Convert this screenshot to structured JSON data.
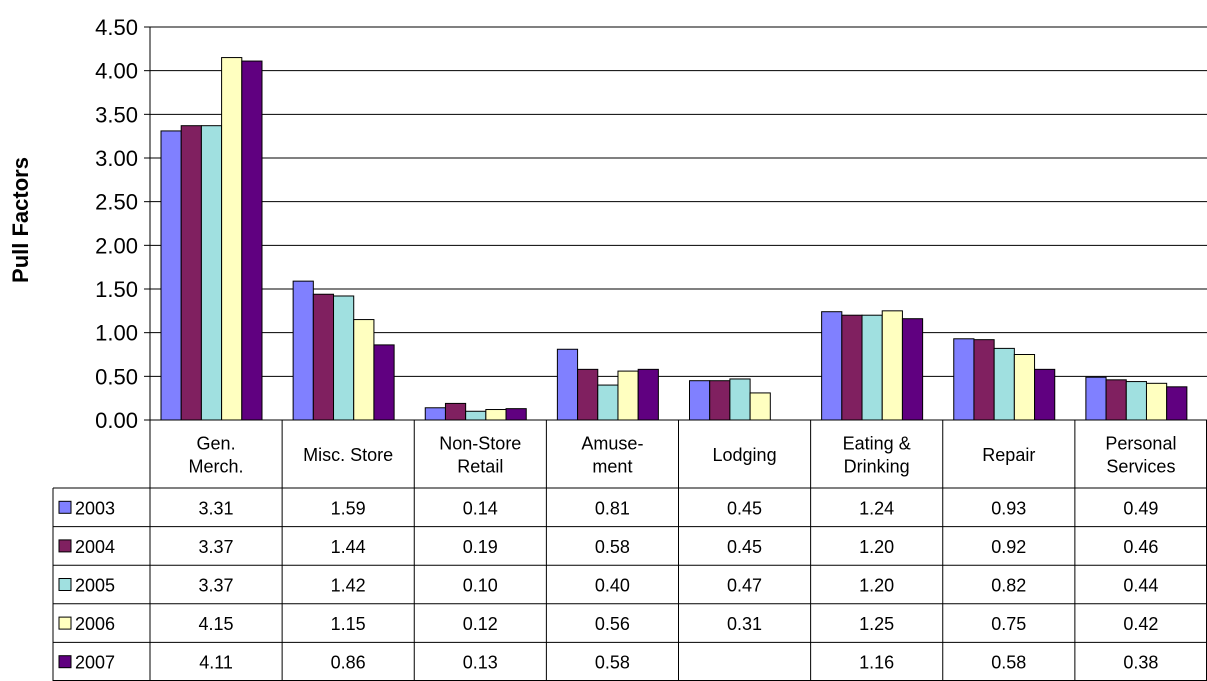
{
  "chart_data": {
    "type": "bar",
    "title": "",
    "xlabel": "",
    "ylabel": "Pull Factors",
    "ylim": [
      0,
      4.5
    ],
    "ytick_step": 0.5,
    "yticks": [
      "0.00",
      "0.50",
      "1.00",
      "1.50",
      "2.00",
      "2.50",
      "3.00",
      "3.50",
      "4.00",
      "4.50"
    ],
    "grid": true,
    "legend": "data-table-left",
    "categories": [
      [
        "Gen.",
        "Merch."
      ],
      [
        "Misc. Store"
      ],
      [
        "Non-Store",
        "Retail"
      ],
      [
        "Amuse-",
        "ment"
      ],
      [
        "Lodging"
      ],
      [
        "Eating &",
        "Drinking"
      ],
      [
        "Repair"
      ],
      [
        "Personal",
        "Services"
      ]
    ],
    "series": [
      {
        "name": "2003",
        "color": "#8080FF",
        "values": [
          3.31,
          1.59,
          0.14,
          0.81,
          0.45,
          1.24,
          0.93,
          0.49
        ],
        "labels": [
          "3.31",
          "1.59",
          "0.14",
          "0.81",
          "0.45",
          "1.24",
          "0.93",
          "0.49"
        ]
      },
      {
        "name": "2004",
        "color": "#802060",
        "values": [
          3.37,
          1.44,
          0.19,
          0.58,
          0.45,
          1.2,
          0.92,
          0.46
        ],
        "labels": [
          "3.37",
          "1.44",
          "0.19",
          "0.58",
          "0.45",
          "1.20",
          "0.92",
          "0.46"
        ]
      },
      {
        "name": "2005",
        "color": "#A0E0E0",
        "values": [
          3.37,
          1.42,
          0.1,
          0.4,
          0.47,
          1.2,
          0.82,
          0.44
        ],
        "labels": [
          "3.37",
          "1.42",
          "0.10",
          "0.40",
          "0.47",
          "1.20",
          "0.82",
          "0.44"
        ]
      },
      {
        "name": "2006",
        "color": "#FFFFC0",
        "values": [
          4.15,
          1.15,
          0.12,
          0.56,
          0.31,
          1.25,
          0.75,
          0.42
        ],
        "labels": [
          "4.15",
          "1.15",
          "0.12",
          "0.56",
          "0.31",
          "1.25",
          "0.75",
          "0.42"
        ]
      },
      {
        "name": "2007",
        "color": "#600080",
        "values": [
          4.11,
          0.86,
          0.13,
          0.58,
          null,
          1.16,
          0.58,
          0.38
        ],
        "labels": [
          "4.11",
          "0.86",
          "0.13",
          "0.58",
          "",
          "1.16",
          "0.58",
          "0.38"
        ]
      }
    ]
  }
}
